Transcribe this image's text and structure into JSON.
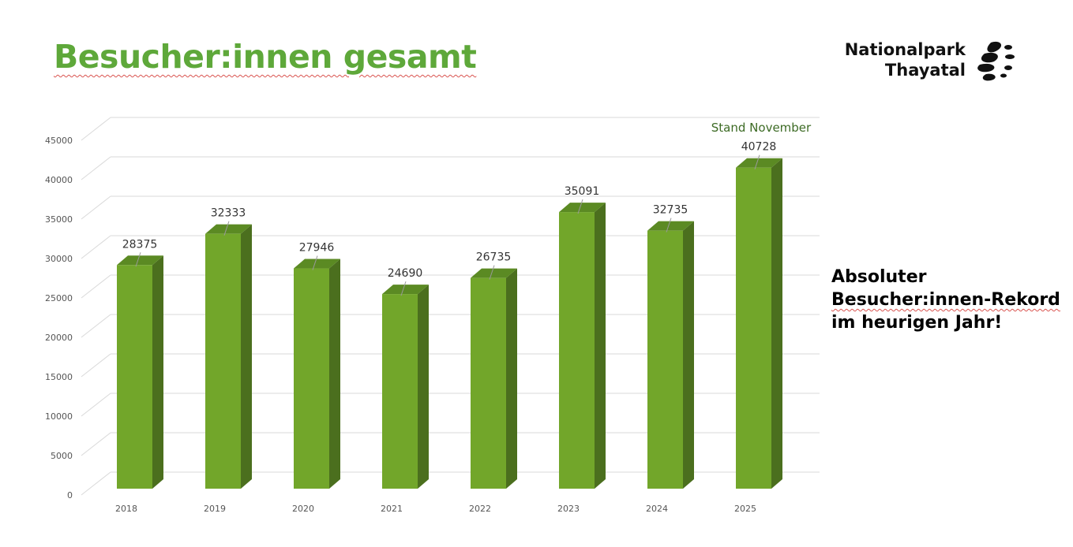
{
  "header": {
    "title": "Besucher:innen gesamt"
  },
  "logo": {
    "line1": "Nationalpark",
    "line2": "Thayatal"
  },
  "side_note": {
    "lines": [
      "Absoluter",
      "Besucher:innen-Rekord",
      "im heurigen Jahr!"
    ]
  },
  "chart_data": {
    "type": "bar",
    "categories": [
      "2018",
      "2019",
      "2020",
      "2021",
      "2022",
      "2023",
      "2024",
      "2025"
    ],
    "values": [
      28375,
      32333,
      27946,
      24690,
      26735,
      35091,
      32735,
      40728
    ],
    "color": "#72a62a",
    "ylim": [
      0,
      45000
    ],
    "yticks": [
      0,
      5000,
      10000,
      15000,
      20000,
      25000,
      30000,
      35000,
      40000,
      45000
    ],
    "grid": true,
    "annotation": "Stand November"
  }
}
